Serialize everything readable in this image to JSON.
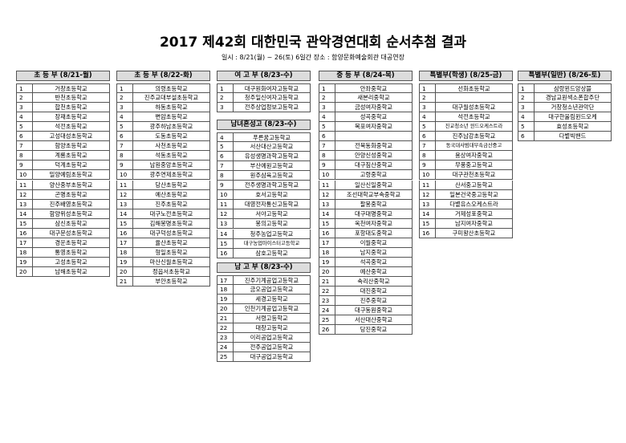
{
  "title": "2017 제42회 대한민국 관악경연대회 순서추첨 결과",
  "subtitle": "일시 : 8/21(월) ~ 26(토) 6일간   장소 : 함양문화예술회관 대공연장",
  "tables": [
    {
      "sections": [
        {
          "header": "초 등 부 (8/21-월)",
          "rows": [
            [
              1,
              "거창초등학교"
            ],
            [
              2,
              "반천초등학교"
            ],
            [
              3,
              "합천초등학교"
            ],
            [
              4,
              "장재초등학교"
            ],
            [
              5,
              "석전초등학교"
            ],
            [
              6,
              "고성대성초등학교"
            ],
            [
              7,
              "함양초등학교"
            ],
            [
              8,
              "계룡초등학교"
            ],
            [
              9,
              "덕계초등학교"
            ],
            [
              10,
              "밀양예림초등학교"
            ],
            [
              11,
              "양산중부초등학교"
            ],
            [
              12,
              "곤명초등학교"
            ],
            [
              13,
              "진주배영초등학교"
            ],
            [
              14,
              "함양위성초등학교"
            ],
            [
              15,
              "삼신초등학교"
            ],
            [
              16,
              "대구문성초등학교"
            ],
            [
              17,
              "경운초등학교"
            ],
            [
              18,
              "통영초등학교"
            ],
            [
              19,
              "고성초등학교"
            ],
            [
              20,
              "남해초등학교"
            ]
          ]
        }
      ]
    },
    {
      "sections": [
        {
          "header": "초 등 부 (8/22-화)",
          "rows": [
            [
              1,
              "의령초등학교"
            ],
            [
              2,
              "진주교대부설초등학교"
            ],
            [
              3,
              "하동초등학교"
            ],
            [
              4,
              "변암초등학교"
            ],
            [
              5,
              "광주하남초등학교"
            ],
            [
              6,
              "도동초등학교"
            ],
            [
              7,
              "사천초등학교"
            ],
            [
              8,
              "석동초등학교"
            ],
            [
              9,
              "남원중앙초등학교"
            ],
            [
              10,
              "광주연제초등학교"
            ],
            [
              11,
              "당산초등학교"
            ],
            [
              12,
              "예산초등학교"
            ],
            [
              13,
              "진주초등학교"
            ],
            [
              14,
              "대구노전초등학교"
            ],
            [
              15,
              "김해봉명초등학교"
            ],
            [
              16,
              "대구덕성초등학교"
            ],
            [
              17,
              "율산초등학교"
            ],
            [
              18,
              "형일초등학교"
            ],
            [
              19,
              "마산신월초등학교"
            ],
            [
              20,
              "정읍서초등학교"
            ],
            [
              21,
              "부안초등학교"
            ]
          ]
        }
      ]
    },
    {
      "sections": [
        {
          "header": "여 고 부 (8/23-수)",
          "rows": [
            [
              1,
              "대구원화여자고등학교"
            ],
            [
              2,
              "청주일신여자고등학교"
            ],
            [
              3,
              "전주상업정보고등학교"
            ]
          ]
        },
        {
          "header": "남녀혼성고 (8/23-수)",
          "rows": [
            [
              4,
              "푸른꿈고등학교"
            ],
            [
              5,
              "서산대산고등학교"
            ],
            [
              6,
              "유성생명과학고등학교"
            ],
            [
              7,
              "부산예원고등학교"
            ],
            [
              8,
              "원주삼육고등학교"
            ],
            [
              9,
              "전주생명과학고등학교"
            ],
            [
              10,
              "호서고등학교"
            ],
            [
              11,
              "대영전자통신고등학교"
            ],
            [
              12,
              "서야고등학교"
            ],
            [
              13,
              "봉의고등학교"
            ],
            [
              14,
              "청주농업고등학교"
            ],
            [
              15,
              "대구농업마이스터고등학교"
            ],
            [
              16,
              "삼호고등학교"
            ]
          ]
        },
        {
          "header": "남 고 부 (8/23-수)",
          "rows": [
            [
              17,
              "진주기계공업고등학교"
            ],
            [
              18,
              "금오공업고등학교"
            ],
            [
              19,
              "세경고등학교"
            ],
            [
              20,
              "인천기계공업고등학교"
            ],
            [
              21,
              "서령고등학교"
            ],
            [
              22,
              "대창고등학교"
            ],
            [
              23,
              "이리공업고등학교"
            ],
            [
              24,
              "전주공업고등학교"
            ],
            [
              25,
              "대구공업고등학교"
            ]
          ]
        }
      ]
    },
    {
      "sections": [
        {
          "header": "중 등 부 (8/24-목)",
          "rows": [
            [
              1,
              "안좌중학교"
            ],
            [
              2,
              "새본리중학교"
            ],
            [
              3,
              "금성여자중학교"
            ],
            [
              4,
              "성곡중학교"
            ],
            [
              5,
              "목포여자중학교"
            ],
            [
              6,
              null
            ],
            [
              7,
              "전북동화중학교"
            ],
            [
              8,
              "안양신성중학교"
            ],
            [
              9,
              "대구침산중학교"
            ],
            [
              10,
              "고령중학교"
            ],
            [
              11,
              "일산신일중학교"
            ],
            [
              12,
              "조선대학교부속중학교"
            ],
            [
              13,
              "팔봉중학교"
            ],
            [
              14,
              "대구대명중학교"
            ],
            [
              15,
              "옥천여자중학교"
            ],
            [
              16,
              "포항대도중학교"
            ],
            [
              17,
              "이월중학교"
            ],
            [
              18,
              "남지중학교"
            ],
            [
              19,
              "석곡중학교"
            ],
            [
              20,
              "예산중학교"
            ],
            [
              21,
              "속리산중학교"
            ],
            [
              22,
              "대진중학교"
            ],
            [
              23,
              "진주중학교"
            ],
            [
              24,
              "대구동원중학교"
            ],
            [
              25,
              "서산대산중학교"
            ],
            [
              26,
              "당진중학교"
            ]
          ]
        }
      ]
    },
    {
      "sections": [
        {
          "header": "특별부(학생) (8/25-금)",
          "rows": [
            [
              1,
              "선화초등학교"
            ],
            [
              2,
              null
            ],
            [
              3,
              "대구월성초등학교"
            ],
            [
              4,
              "석전초등학교"
            ],
            [
              5,
              "진교청소년 윈드오케스트라"
            ],
            [
              6,
              "진주남강초등학교"
            ],
            [
              7,
              "동국대사범대부속금산중고"
            ],
            [
              8,
              "용상여자중학교"
            ],
            [
              9,
              "무풍중고등학교"
            ],
            [
              10,
              "대구관천초등학교"
            ],
            [
              11,
              "산서중고등학교"
            ],
            [
              12,
              "일본건국중고등학교"
            ],
            [
              13,
              "다볕유스오케스트라"
            ],
            [
              14,
              "거제성포중학교"
            ],
            [
              15,
              "남지여자중학교"
            ],
            [
              16,
              "구미왕산초등학교"
            ]
          ]
        }
      ]
    },
    {
      "sections": [
        {
          "header": "특별부(일반) (8/26-토)",
          "rows": [
            [
              1,
              "삼랑윈드앙상블"
            ],
            [
              2,
              "경남교원색소폰합주단"
            ],
            [
              3,
              "거창청소년관악단"
            ],
            [
              4,
              "대구한울림윈드오케"
            ],
            [
              5,
              "효성초등학교"
            ],
            [
              6,
              "다볕빅밴드"
            ]
          ]
        }
      ]
    }
  ]
}
